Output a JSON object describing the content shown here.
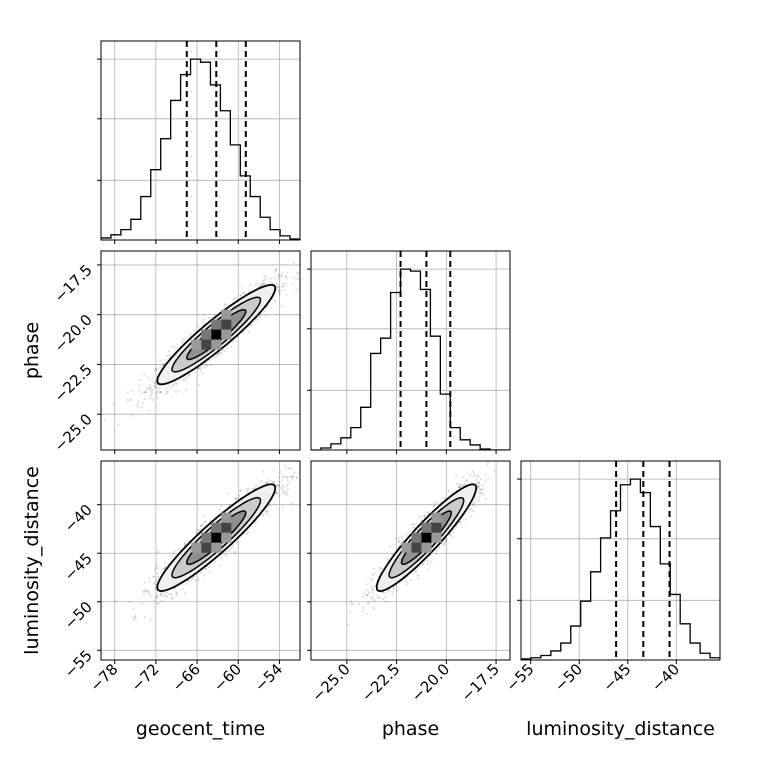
{
  "chart_data": {
    "type": "corner",
    "parameters": [
      "geocent_time",
      "phase",
      "luminosity_distance"
    ],
    "xlabels": {
      "geocent_time": "geocent_time",
      "phase": "phase",
      "luminosity_distance": "luminosity_distance"
    },
    "ylabels": {
      "phase": "phase",
      "luminosity_distance": "luminosity_distance"
    },
    "ranges": {
      "geocent_time": [
        -80,
        -51
      ],
      "phase": [
        -26.8,
        -16.8
      ],
      "luminosity_distance": [
        -56,
        -35.5
      ]
    },
    "ticks": {
      "geocent_time": [
        -78,
        -72,
        -66,
        -60,
        -54
      ],
      "phase": [
        -25.0,
        -22.5,
        -20.0,
        -17.5
      ],
      "luminosity_distance": [
        -55,
        -50,
        -45,
        -40
      ]
    },
    "tick_labels": {
      "geocent_time": [
        "−78",
        "−72",
        "−66",
        "−60",
        "−54"
      ],
      "phase": [
        "−25.0",
        "−22.5",
        "−20.0",
        "−17.5"
      ],
      "luminosity_distance": [
        "−55",
        "−50",
        "−45",
        "−40"
      ]
    },
    "histograms": {
      "geocent_time": {
        "edges": [
          -80,
          -78.55,
          -77.1,
          -75.65,
          -74.2,
          -72.75,
          -71.3,
          -69.85,
          -68.4,
          -66.95,
          -65.5,
          -64.05,
          -62.6,
          -61.15,
          -59.7,
          -58.25,
          -56.8,
          -55.35,
          -53.9,
          -52.45,
          -51
        ],
        "counts": [
          2,
          5,
          10,
          20,
          42,
          68,
          98,
          135,
          160,
          175,
          172,
          150,
          125,
          92,
          62,
          42,
          22,
          10,
          4,
          1
        ]
      },
      "phase": {
        "edges": [
          -26.8,
          -26.3,
          -25.8,
          -25.3,
          -24.8,
          -24.3,
          -23.8,
          -23.3,
          -22.8,
          -22.3,
          -21.8,
          -21.3,
          -20.8,
          -20.3,
          -19.8,
          -19.3,
          -18.8,
          -18.3,
          -17.8,
          -17.3,
          -16.8
        ],
        "counts": [
          0,
          2,
          6,
          12,
          22,
          42,
          95,
          110,
          155,
          178,
          176,
          158,
          112,
          55,
          22,
          10,
          5,
          1,
          0,
          0
        ]
      },
      "luminosity_distance": {
        "edges": [
          -56,
          -54.975,
          -53.95,
          -52.925,
          -51.9,
          -50.875,
          -49.85,
          -48.825,
          -47.8,
          -46.775,
          -45.75,
          -44.725,
          -43.7,
          -42.675,
          -41.65,
          -40.625,
          -39.6,
          -38.575,
          -37.55,
          -36.525,
          -35.5
        ],
        "counts": [
          1,
          2,
          4,
          8,
          15,
          30,
          52,
          78,
          108,
          132,
          155,
          160,
          148,
          118,
          85,
          58,
          32,
          15,
          6,
          2
        ]
      }
    },
    "quantiles": {
      "geocent_time": [
        -67.5,
        -63.2,
        -58.9
      ],
      "phase": [
        -22.3,
        -21.0,
        -19.8
      ],
      "luminosity_distance": [
        -46.2,
        -43.4,
        -40.7
      ]
    },
    "correlations": {
      "phase|geocent_time": 0.93,
      "luminosity_distance|geocent_time": 0.93,
      "luminosity_distance|phase": 0.93
    },
    "grid": true,
    "contour_levels": [
      0.5,
      1.0,
      1.5,
      2.0
    ]
  }
}
